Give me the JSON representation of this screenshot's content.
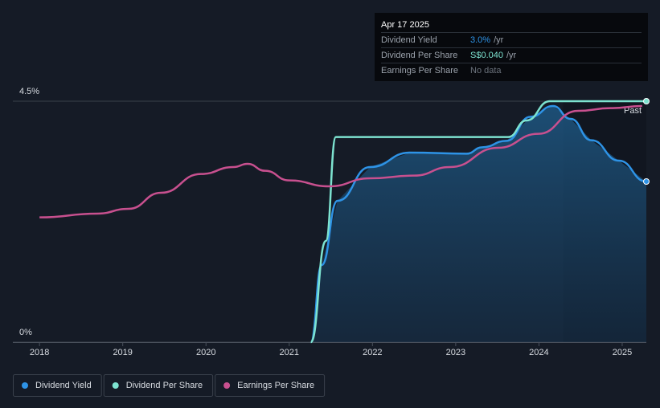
{
  "chart_data": {
    "type": "line",
    "xlim": [
      2017.68,
      2025.29
    ],
    "xticks": [
      2018,
      2019,
      2020,
      2021,
      2022,
      2023,
      2024,
      2025
    ],
    "ylim": [
      0,
      4.5
    ],
    "yticks": [
      {
        "value": 0,
        "label": "0%"
      },
      {
        "value": 4.5,
        "label": "4.5%"
      }
    ],
    "past_label": "Past",
    "past_from": 2024.29,
    "series": [
      {
        "name": "Dividend Yield",
        "color": "#2e93e6",
        "area": true,
        "x": [
          2021.26,
          2021.39,
          2021.58,
          2021.97,
          2022.45,
          2023.13,
          2023.32,
          2023.61,
          2023.9,
          2024.17,
          2024.38,
          2024.63,
          2024.96,
          2025.29
        ],
        "values": [
          0,
          1.44,
          2.64,
          3.27,
          3.54,
          3.52,
          3.64,
          3.76,
          4.21,
          4.41,
          4.17,
          3.77,
          3.39,
          3.0
        ]
      },
      {
        "name": "Dividend Per Share",
        "color": "#7de3d0",
        "x": [
          2021.26,
          2021.44,
          2021.56,
          2023.63,
          2023.85,
          2024.13,
          2025.29
        ],
        "values": [
          0,
          1.89,
          3.83,
          3.83,
          4.14,
          4.5,
          4.5
        ]
      },
      {
        "name": "Earnings Per Share",
        "color": "#c8508f",
        "x": [
          2018,
          2018.69,
          2019.07,
          2019.46,
          2019.94,
          2020.33,
          2020.5,
          2020.71,
          2021.0,
          2021.48,
          2021.97,
          2022.5,
          2022.93,
          2023.51,
          2023.99,
          2024.47,
          2024.86,
          2025.24
        ],
        "values": [
          2.33,
          2.4,
          2.49,
          2.79,
          3.14,
          3.27,
          3.33,
          3.2,
          3.02,
          2.91,
          3.06,
          3.11,
          3.27,
          3.63,
          3.89,
          4.32,
          4.37,
          4.41
        ]
      }
    ]
  },
  "tooltip": {
    "date": "Apr 17 2025",
    "rows": [
      {
        "label": "Dividend Yield",
        "value": "3.0%",
        "unit": "/yr"
      },
      {
        "label": "Dividend Per Share",
        "value": "S$0.040",
        "unit": "/yr"
      },
      {
        "label": "Earnings Per Share",
        "value": "No data"
      }
    ]
  }
}
